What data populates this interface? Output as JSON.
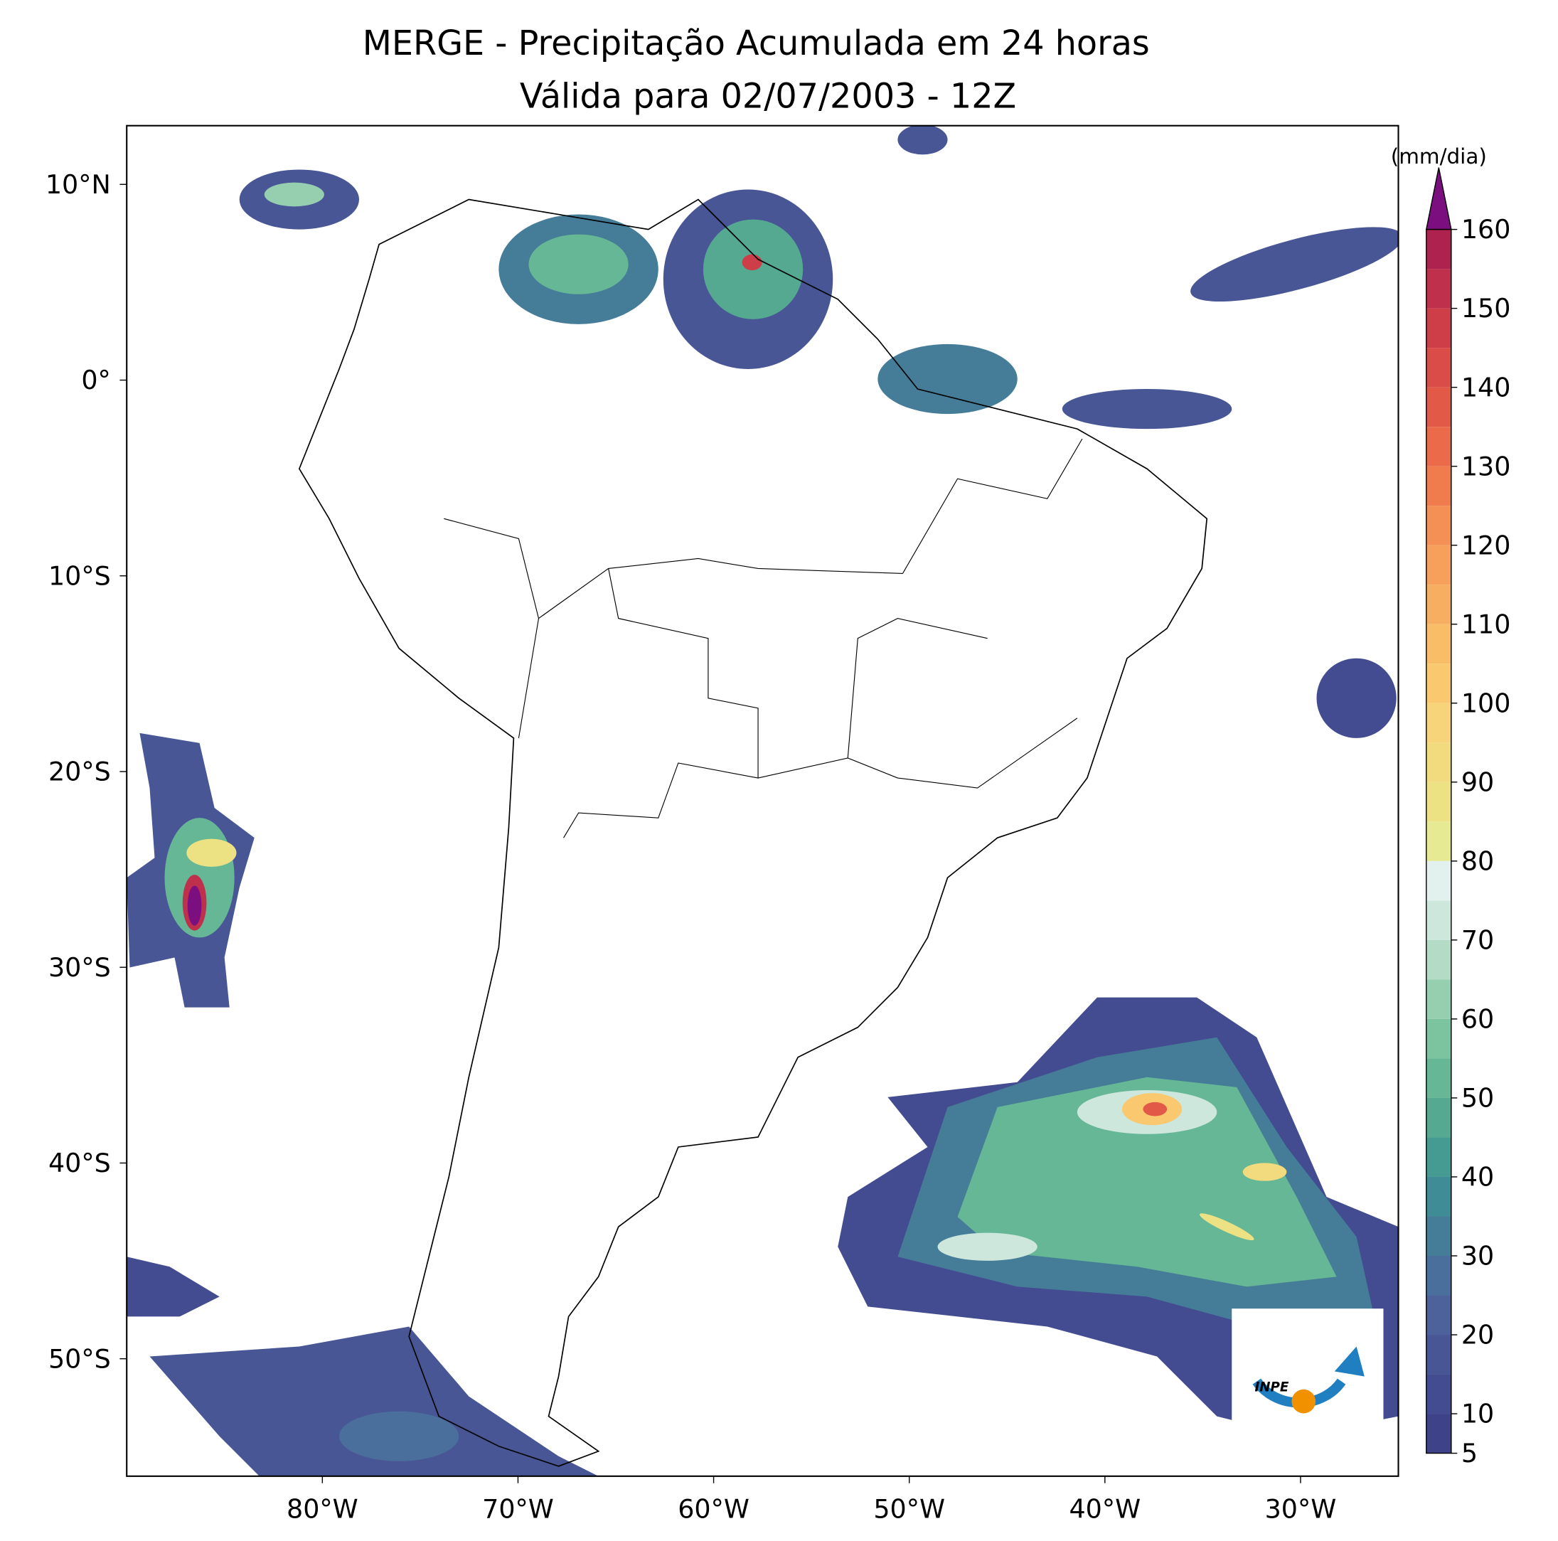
{
  "title": "MERGE - Precipitação Acumulada em 24 horas",
  "subtitle": "Válida para 02/07/2003 - 12Z",
  "xlim": [
    -90,
    -25
  ],
  "ylim": [
    -56,
    13
  ],
  "xticks": [
    {
      "value": -80,
      "label": "80°W"
    },
    {
      "value": -70,
      "label": "70°W"
    },
    {
      "value": -60,
      "label": "60°W"
    },
    {
      "value": -50,
      "label": "50°W"
    },
    {
      "value": -40,
      "label": "40°W"
    },
    {
      "value": -30,
      "label": "30°W"
    }
  ],
  "yticks": [
    {
      "value": 10,
      "label": "10°N"
    },
    {
      "value": 0,
      "label": "0°"
    },
    {
      "value": -10,
      "label": "10°S"
    },
    {
      "value": -20,
      "label": "20°S"
    },
    {
      "value": -30,
      "label": "30°S"
    },
    {
      "value": -40,
      "label": "40°S"
    },
    {
      "value": -50,
      "label": "50°S"
    }
  ],
  "colorbar": {
    "unit": "(mm/dia)",
    "lim": [
      5,
      160
    ],
    "ticks": [
      5,
      10,
      20,
      30,
      40,
      50,
      60,
      70,
      80,
      90,
      100,
      110,
      120,
      130,
      140,
      150,
      160
    ],
    "levels": [
      5,
      10,
      15,
      20,
      25,
      30,
      35,
      40,
      45,
      50,
      55,
      60,
      65,
      70,
      75,
      80,
      85,
      90,
      95,
      100,
      105,
      110,
      115,
      120,
      125,
      130,
      135,
      140,
      145,
      150,
      155,
      160
    ],
    "colors": [
      "#3e4289",
      "#434c90",
      "#485696",
      "#4d629b",
      "#4b6f9c",
      "#457d99",
      "#3f8b96",
      "#459a92",
      "#55a990",
      "#66b795",
      "#7cc39f",
      "#96ceb0",
      "#b3dbc6",
      "#cde7dd",
      "#e3f1ee",
      "#e5ea93",
      "#ece284",
      "#f2da7e",
      "#f7d37a",
      "#f9c86f",
      "#f9bc67",
      "#f8ae60",
      "#f6a05b",
      "#f48f55",
      "#f07c4e",
      "#ea6a49",
      "#e25a47",
      "#d94c47",
      "#cd3e49",
      "#bf304c",
      "#ae224f"
    ],
    "over_color": "#7b0f80"
  },
  "logo_text": "INPE"
}
